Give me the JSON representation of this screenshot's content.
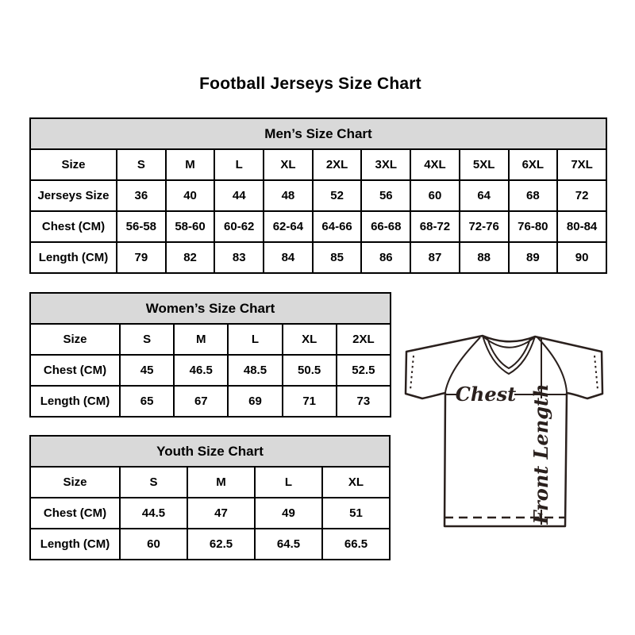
{
  "page": {
    "title": "Football Jerseys Size Chart"
  },
  "tables": {
    "men": {
      "title": "Men’s Size Chart",
      "rows": [
        {
          "label": "Size",
          "values": [
            "S",
            "M",
            "L",
            "XL",
            "2XL",
            "3XL",
            "4XL",
            "5XL",
            "6XL",
            "7XL"
          ]
        },
        {
          "label": "Jerseys Size",
          "values": [
            "36",
            "40",
            "44",
            "48",
            "52",
            "56",
            "60",
            "64",
            "68",
            "72"
          ]
        },
        {
          "label": "Chest (CM)",
          "values": [
            "56-58",
            "58-60",
            "60-62",
            "62-64",
            "64-66",
            "66-68",
            "68-72",
            "72-76",
            "76-80",
            "80-84"
          ]
        },
        {
          "label": "Length (CM)",
          "values": [
            "79",
            "82",
            "83",
            "84",
            "85",
            "86",
            "87",
            "88",
            "89",
            "90"
          ]
        }
      ]
    },
    "women": {
      "title": "Women’s Size Chart",
      "rows": [
        {
          "label": "Size",
          "values": [
            "S",
            "M",
            "L",
            "XL",
            "2XL"
          ]
        },
        {
          "label": "Chest (CM)",
          "values": [
            "45",
            "46.5",
            "48.5",
            "50.5",
            "52.5"
          ]
        },
        {
          "label": "Length (CM)",
          "values": [
            "65",
            "67",
            "69",
            "71",
            "73"
          ]
        }
      ]
    },
    "youth": {
      "title": "Youth Size Chart",
      "rows": [
        {
          "label": "Size",
          "values": [
            "S",
            "M",
            "L",
            "XL"
          ]
        },
        {
          "label": "Chest (CM)",
          "values": [
            "44.5",
            "47",
            "49",
            "51"
          ]
        },
        {
          "label": "Length (CM)",
          "values": [
            "60",
            "62.5",
            "64.5",
            "66.5"
          ]
        }
      ]
    }
  },
  "diagram": {
    "chest_label": "Chest",
    "front_length_label": "Front Length"
  },
  "colors": {
    "table_header_bg": "#d9d9d9",
    "table_border": "#000000",
    "diagram_line": "#2a201d"
  }
}
